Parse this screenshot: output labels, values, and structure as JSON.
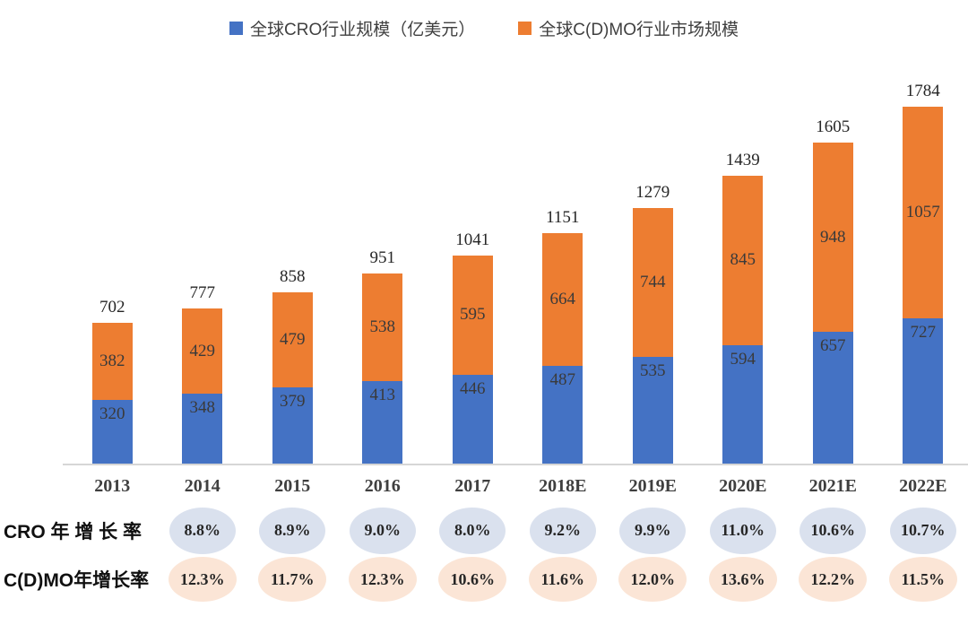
{
  "legend": [
    {
      "label": "全球CRO行业规模（亿美元）",
      "color": "#4472C4"
    },
    {
      "label": "全球C(D)MO行业市场规模",
      "color": "#ED7D31"
    }
  ],
  "chart_data": {
    "type": "bar",
    "stacked": true,
    "categories": [
      "2013",
      "2014",
      "2015",
      "2016",
      "2017",
      "2018E",
      "2019E",
      "2020E",
      "2021E",
      "2022E"
    ],
    "series": [
      {
        "name": "全球CRO行业规模（亿美元）",
        "color": "#4472C4",
        "values": [
          320,
          348,
          379,
          413,
          446,
          487,
          535,
          594,
          657,
          727
        ]
      },
      {
        "name": "全球C(D)MO行业市场规模",
        "color": "#ED7D31",
        "values": [
          382,
          429,
          479,
          538,
          595,
          664,
          744,
          845,
          948,
          1057
        ]
      }
    ],
    "totals": [
      702,
      777,
      858,
      951,
      1041,
      1151,
      1279,
      1439,
      1605,
      1784
    ],
    "title": "",
    "xlabel": "",
    "ylabel": "",
    "ylim": [
      0,
      1900
    ],
    "gridlines": false,
    "legend_position": "top",
    "value_labels": "inside"
  },
  "growth_rows": [
    {
      "label": "CRO 年 增 长 率",
      "bubble_color": "#DAE1EE",
      "values": [
        null,
        "8.8%",
        "8.9%",
        "9.0%",
        "8.0%",
        "9.2%",
        "9.9%",
        "11.0%",
        "10.6%",
        "10.7%"
      ]
    },
    {
      "label": "C(D)MO年增长率",
      "bubble_color": "#FBE5D6",
      "values": [
        null,
        "12.3%",
        "11.7%",
        "12.3%",
        "10.6%",
        "11.6%",
        "12.0%",
        "13.6%",
        "12.2%",
        "11.5%"
      ]
    }
  ],
  "colors": {
    "axis_line": "#D6D6D6",
    "total_label_text": "#262626",
    "bar_value_text": "#3A3A3A",
    "year_label_text": "#3F3F3F"
  }
}
